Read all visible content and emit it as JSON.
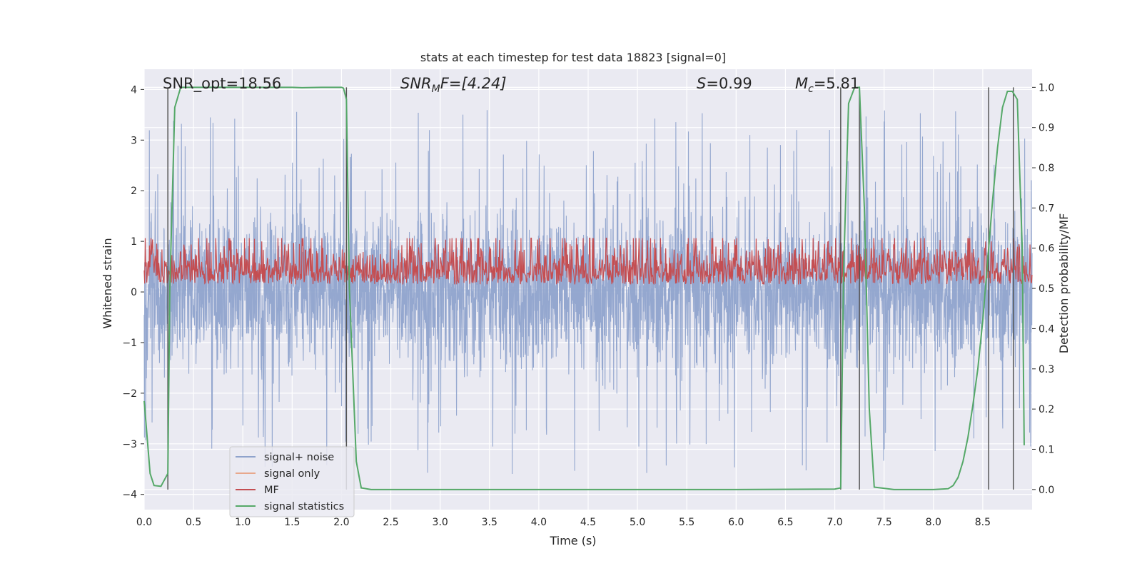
{
  "chart_data": {
    "type": "line",
    "title": "stats at each timestep for test data 18823 [signal=0]",
    "xlabel": "Time (s)",
    "ylabel_left": "Whitened strain",
    "ylabel_right": "Detection probability/MF",
    "xlim": [
      0.0,
      9.0
    ],
    "ylim_left": [
      -4.3,
      4.4
    ],
    "ylim_right": [
      -0.05,
      1.045
    ],
    "x_ticks": [
      "0.0",
      "0.5",
      "1.0",
      "1.5",
      "2.0",
      "2.5",
      "3.0",
      "3.5",
      "4.0",
      "4.5",
      "5.0",
      "5.5",
      "6.0",
      "6.5",
      "7.0",
      "7.5",
      "8.0",
      "8.5"
    ],
    "y_ticks_left": [
      "−4",
      "−3",
      "−2",
      "−1",
      "0",
      "1",
      "2",
      "3",
      "4"
    ],
    "y_ticks_right": [
      "0.0",
      "0.1",
      "0.2",
      "0.3",
      "0.4",
      "0.5",
      "0.6",
      "0.7",
      "0.8",
      "0.9",
      "1.0"
    ],
    "grid": true,
    "legend_position": "lower-left",
    "annotations": {
      "snr_opt": "SNR_opt=18.56",
      "snr_mf_prefix": "SNR",
      "snr_mf_sub": "M",
      "snr_mf_suffix": "F=[4.24]",
      "s_label": "S",
      "s_value": "=0.99",
      "mc_label": "M",
      "mc_sub": "c",
      "mc_value": "=5.81"
    },
    "vertical_lines": [
      0.24,
      2.05,
      7.06,
      7.25,
      8.56,
      8.81
    ],
    "series": [
      {
        "name": "signal+ noise",
        "color": "#8fa3cc",
        "axis": "left",
        "envelope": {
          "low": -2.0,
          "high": 2.2,
          "spike_max": 3.6,
          "spike_min": -3.8
        }
      },
      {
        "name": "signal only",
        "color": "#e8a88c",
        "axis": "left"
      },
      {
        "name": "MF",
        "color": "#c44e52",
        "axis": "right",
        "band": [
          0.51,
          0.62
        ]
      },
      {
        "name": "signal statistics",
        "color": "#55a868",
        "axis": "right",
        "x": [
          0.0,
          0.06,
          0.1,
          0.17,
          0.24,
          0.26,
          0.31,
          0.37,
          0.4,
          0.6,
          1.0,
          1.5,
          1.6,
          1.8,
          2.0,
          2.02,
          2.05,
          2.08,
          2.15,
          2.2,
          2.3,
          3.0,
          4.0,
          5.0,
          6.0,
          7.0,
          7.06,
          7.09,
          7.14,
          7.2,
          7.25,
          7.3,
          7.35,
          7.4,
          7.6,
          8.0,
          8.15,
          8.2,
          8.25,
          8.3,
          8.35,
          8.4,
          8.45,
          8.5,
          8.55,
          8.6,
          8.65,
          8.7,
          8.75,
          8.8,
          8.85,
          8.9,
          8.92
        ],
        "y": [
          0.22,
          0.04,
          0.01,
          0.008,
          0.04,
          0.5,
          0.95,
          1.0,
          1.0,
          1.0,
          1.0,
          1.0,
          0.999,
          1.0,
          1.0,
          0.998,
          0.97,
          0.5,
          0.07,
          0.004,
          0.0,
          0.0,
          0.0,
          0.0,
          0.0,
          0.001,
          0.004,
          0.55,
          0.96,
          0.999,
          1.0,
          0.7,
          0.2,
          0.006,
          0.0,
          0.0,
          0.002,
          0.01,
          0.03,
          0.07,
          0.13,
          0.21,
          0.3,
          0.42,
          0.57,
          0.72,
          0.85,
          0.95,
          0.99,
          0.99,
          0.97,
          0.6,
          0.11
        ]
      }
    ]
  }
}
